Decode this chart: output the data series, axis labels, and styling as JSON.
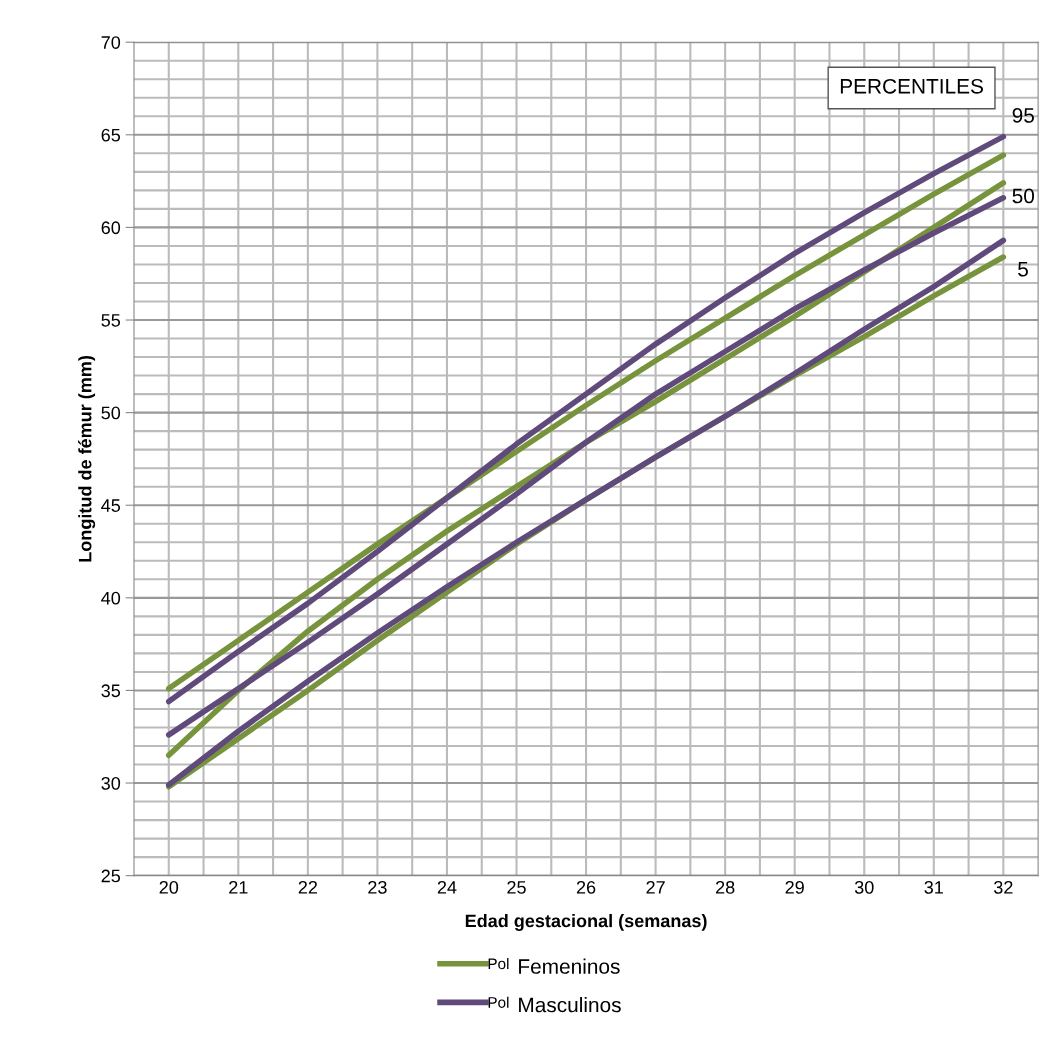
{
  "chart_data": {
    "type": "line",
    "xlabel": "Edad gestacional (semanas)",
    "ylabel": "Longitud de fémur (mm)",
    "categories": [
      "20",
      "21",
      "22",
      "23",
      "24",
      "25",
      "26",
      "27",
      "28",
      "29",
      "30",
      "31",
      "32"
    ],
    "series": [
      {
        "name": "Pol",
        "color": "#77933c",
        "values": [
          35.1,
          37.7,
          40.3,
          42.9,
          45.4,
          47.9,
          50.4,
          52.8,
          55.1,
          57.4,
          59.6,
          61.8,
          63.9
        ]
      },
      {
        "color": "#77933c",
        "values": [
          31.5,
          35.0,
          38.2,
          41.0,
          43.6,
          46.0,
          48.4,
          50.6,
          52.9,
          55.2,
          57.6,
          60.0,
          62.4
        ]
      },
      {
        "color": "#77933c",
        "values": [
          29.8,
          32.4,
          35.0,
          37.7,
          40.3,
          42.9,
          45.3,
          47.6,
          49.8,
          52.0,
          54.1,
          56.3,
          58.4
        ]
      },
      {
        "name": "Pol",
        "color": "#604a7b",
        "values": [
          34.4,
          37.1,
          39.7,
          42.5,
          45.4,
          48.3,
          51.0,
          53.7,
          56.2,
          58.6,
          60.8,
          62.9,
          64.9
        ]
      },
      {
        "color": "#604a7b",
        "values": [
          32.6,
          35.1,
          37.6,
          40.2,
          42.9,
          45.6,
          48.4,
          51.0,
          53.3,
          55.6,
          57.7,
          59.7,
          61.6
        ]
      },
      {
        "color": "#604a7b",
        "values": [
          29.9,
          32.8,
          35.5,
          38.1,
          40.6,
          43.0,
          45.3,
          47.6,
          49.8,
          52.1,
          54.5,
          56.8,
          59.3
        ]
      }
    ],
    "ylim": [
      25,
      70
    ],
    "yticks": [
      25,
      30,
      35,
      40,
      45,
      50,
      55,
      60,
      65,
      70
    ],
    "grid": true,
    "legend": "bottom",
    "marker": "none",
    "line_style": "solid",
    "annotations": [
      "PERCENTILES",
      "95",
      "50",
      "5",
      "Femeninos",
      "Masculinos"
    ]
  }
}
